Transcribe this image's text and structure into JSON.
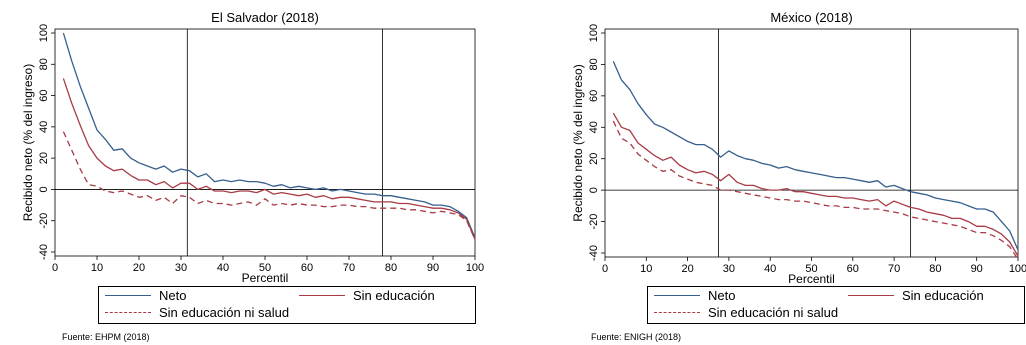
{
  "chart_data": [
    {
      "type": "line",
      "title": "El Salvador (2018)",
      "xlabel": "Percentil",
      "ylabel": "Recibido neto (% del ingreso)",
      "xlim": [
        0,
        100
      ],
      "ylim": [
        -40,
        100
      ],
      "xticks": [
        0,
        10,
        20,
        30,
        40,
        50,
        60,
        70,
        80,
        90,
        100
      ],
      "yticks": [
        100,
        80,
        60,
        40,
        20,
        0,
        -20,
        -40
      ],
      "vlines": [
        31.5,
        78
      ],
      "hline": 0,
      "x": [
        2,
        4,
        6,
        8,
        10,
        12,
        14,
        16,
        18,
        20,
        22,
        24,
        26,
        28,
        30,
        32,
        34,
        36,
        38,
        40,
        42,
        44,
        46,
        48,
        50,
        52,
        54,
        56,
        58,
        60,
        62,
        64,
        66,
        68,
        70,
        72,
        74,
        76,
        78,
        80,
        82,
        84,
        86,
        88,
        90,
        92,
        94,
        96,
        98,
        100
      ],
      "series": [
        {
          "name": "Neto",
          "color": "#355f8d",
          "dash": "solid",
          "values": [
            100,
            82,
            66,
            52,
            38,
            32,
            25,
            26,
            20,
            17,
            15,
            13,
            15,
            11,
            13,
            12,
            8,
            10,
            5,
            6,
            5,
            6,
            5,
            5,
            4,
            2,
            3,
            1,
            2,
            1,
            0,
            1,
            -1,
            0,
            -1,
            -2,
            -3,
            -3,
            -4,
            -4,
            -5,
            -6,
            -7,
            -8,
            -10,
            -10,
            -11,
            -14,
            -18,
            -31
          ]
        },
        {
          "name": "Sin educación",
          "color": "#a83b46",
          "dash": "solid",
          "values": [
            71,
            55,
            41,
            28,
            20,
            15,
            12,
            13,
            9,
            6,
            6,
            3,
            5,
            1,
            4,
            4,
            0,
            2,
            -1,
            -1,
            -2,
            -1,
            -1,
            -2,
            0,
            -3,
            -2,
            -3,
            -4,
            -3,
            -5,
            -4,
            -6,
            -5,
            -5,
            -6,
            -7,
            -8,
            -8,
            -8,
            -9,
            -9,
            -10,
            -11,
            -12,
            -12,
            -13,
            -15,
            -19,
            -32
          ]
        },
        {
          "name": "Sin educación ni salud",
          "color": "#a83b46",
          "dash": "dashed",
          "values": [
            37,
            25,
            13,
            3,
            2,
            -1,
            -2,
            -1,
            -3,
            -5,
            -4,
            -7,
            -5,
            -9,
            -4,
            -5,
            -9,
            -7,
            -9,
            -9,
            -10,
            -9,
            -8,
            -10,
            -6,
            -10,
            -9,
            -10,
            -9,
            -10,
            -10,
            -11,
            -11,
            -10,
            -10,
            -11,
            -11,
            -12,
            -12,
            -12,
            -12,
            -13,
            -13,
            -14,
            -15,
            -14,
            -15,
            -16,
            -20,
            -32
          ]
        }
      ],
      "legend": [
        "Neto",
        "Sin educación",
        "Sin educación ni salud"
      ],
      "legend_position": "bottom",
      "source": "Fuente: EHPM (2018)"
    },
    {
      "type": "line",
      "title": "México (2018)",
      "xlabel": "Percentil",
      "ylabel": "Recibido neto (% del ingreso)",
      "xlim": [
        0,
        100
      ],
      "ylim": [
        -40,
        100
      ],
      "xticks": [
        0,
        10,
        20,
        30,
        40,
        50,
        60,
        70,
        80,
        90,
        100
      ],
      "yticks": [
        100,
        80,
        60,
        40,
        20,
        0,
        -20,
        -40
      ],
      "vlines": [
        27.5,
        74
      ],
      "hline": 0,
      "x": [
        2,
        4,
        6,
        8,
        10,
        12,
        14,
        16,
        18,
        20,
        22,
        24,
        26,
        28,
        30,
        32,
        34,
        36,
        38,
        40,
        42,
        44,
        46,
        48,
        50,
        52,
        54,
        56,
        58,
        60,
        62,
        64,
        66,
        68,
        70,
        72,
        74,
        76,
        78,
        80,
        82,
        84,
        86,
        88,
        90,
        92,
        94,
        96,
        98,
        100
      ],
      "series": [
        {
          "name": "Neto",
          "color": "#355f8d",
          "dash": "solid",
          "values": [
            82,
            70,
            64,
            55,
            48,
            42,
            40,
            37,
            34,
            31,
            29,
            29,
            26,
            21,
            25,
            22,
            20,
            19,
            17,
            16,
            14,
            15,
            13,
            12,
            11,
            10,
            9,
            8,
            8,
            7,
            6,
            5,
            6,
            2,
            3,
            1,
            -1,
            -2,
            -3,
            -5,
            -6,
            -7,
            -8,
            -10,
            -12,
            -12,
            -14,
            -20,
            -26,
            -38
          ]
        },
        {
          "name": "Sin educación",
          "color": "#a83b46",
          "dash": "solid",
          "values": [
            49,
            40,
            38,
            30,
            26,
            22,
            19,
            21,
            16,
            13,
            11,
            12,
            10,
            6,
            10,
            5,
            3,
            3,
            1,
            0,
            0,
            1,
            -1,
            -1,
            -2,
            -3,
            -4,
            -4,
            -5,
            -5,
            -6,
            -7,
            -6,
            -10,
            -7,
            -9,
            -11,
            -12,
            -14,
            -15,
            -16,
            -18,
            -18,
            -20,
            -23,
            -23,
            -25,
            -28,
            -33,
            -42
          ]
        },
        {
          "name": "Sin educación ni salud",
          "color": "#a83b46",
          "dash": "dashed",
          "values": [
            44,
            33,
            30,
            23,
            19,
            15,
            12,
            13,
            9,
            7,
            5,
            4,
            3,
            0,
            0,
            -1,
            -2,
            -3,
            -4,
            -5,
            -6,
            -6,
            -7,
            -7,
            -8,
            -9,
            -10,
            -10,
            -11,
            -11,
            -12,
            -12,
            -12,
            -13,
            -14,
            -15,
            -17,
            -18,
            -19,
            -20,
            -21,
            -22,
            -23,
            -25,
            -27,
            -27,
            -29,
            -32,
            -36,
            -44
          ]
        }
      ],
      "legend": [
        "Neto",
        "Sin educación",
        "Sin educación ni salud"
      ],
      "legend_position": "bottom",
      "source": "Fuente: ENIGH (2018)"
    }
  ]
}
